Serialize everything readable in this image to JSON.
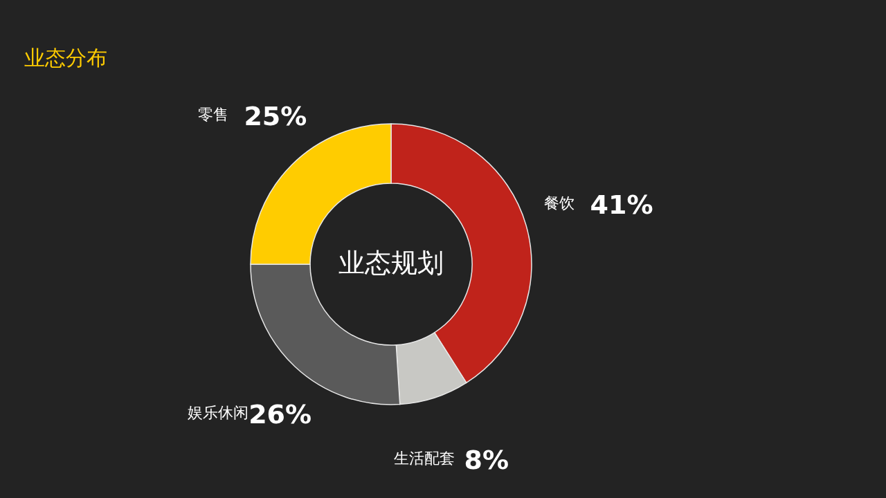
{
  "chart_data": {
    "type": "donut",
    "title": "业态分布",
    "categories": [
      "餐饮",
      "生活配套",
      "娱乐休闲",
      "零售"
    ],
    "values": [
      41,
      8,
      26,
      25
    ],
    "colors": [
      "#c0231b",
      "#c8c8c4",
      "#5a5a5a",
      "#ffcc00"
    ],
    "value_labels": [
      "41%",
      "8%",
      "26%",
      "25%"
    ],
    "annotations": [
      "业态规划"
    ]
  }
}
